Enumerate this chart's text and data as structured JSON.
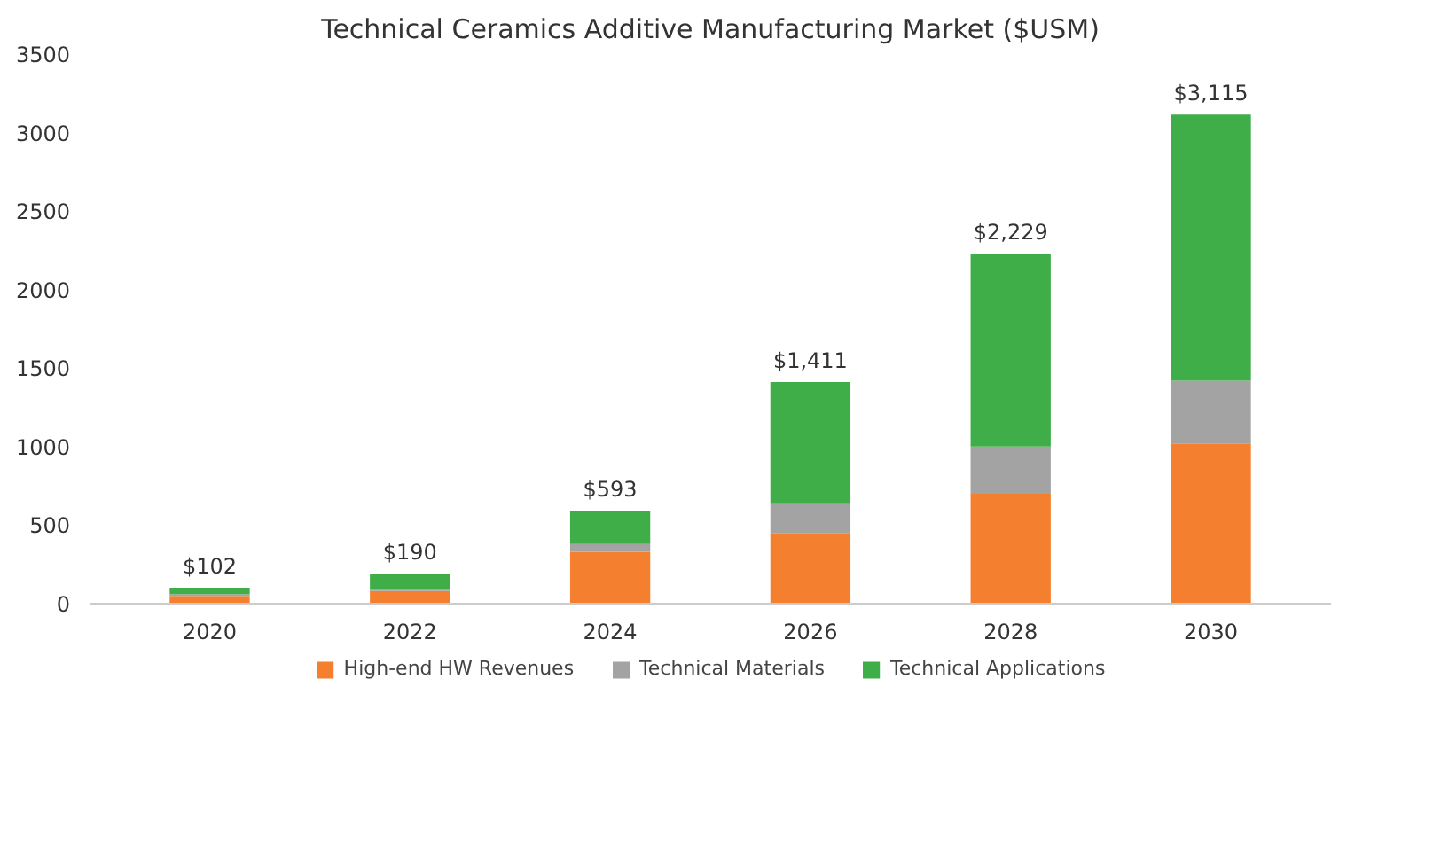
{
  "chart_data": {
    "type": "bar",
    "stacked": true,
    "title": "Technical Ceramics Additive Manufacturing Market ($USM)",
    "categories": [
      "2020",
      "2022",
      "2024",
      "2026",
      "2028",
      "2030"
    ],
    "series": [
      {
        "name": "High-end HW Revenues",
        "color": "#f47f2f",
        "values": [
          50,
          80,
          330,
          450,
          700,
          1020
        ]
      },
      {
        "name": "Technical Materials",
        "color": "#a3a3a3",
        "values": [
          10,
          10,
          50,
          190,
          300,
          400
        ]
      },
      {
        "name": "Technical Applications",
        "color": "#3fae49",
        "values": [
          42,
          100,
          213,
          771,
          1229,
          1695
        ]
      }
    ],
    "totals": [
      "$102",
      "$190",
      "$593",
      "$1,411",
      "$2,229",
      "$3,115"
    ],
    "ylim": [
      0,
      3500
    ],
    "yticks": [
      0,
      500,
      1000,
      1500,
      2000,
      2500,
      3000,
      3500
    ],
    "grid": false,
    "legend": "bottom"
  }
}
